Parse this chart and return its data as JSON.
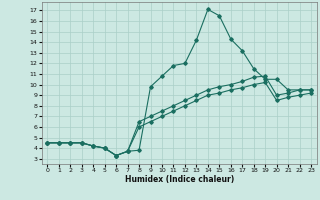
{
  "xlabel": "Humidex (Indice chaleur)",
  "background_color": "#cce8e2",
  "line_color": "#1a6e60",
  "grid_color": "#aacfc8",
  "x_ticks": [
    0,
    1,
    2,
    3,
    4,
    5,
    6,
    7,
    8,
    9,
    10,
    11,
    12,
    13,
    14,
    15,
    16,
    17,
    18,
    19,
    20,
    21,
    22,
    23
  ],
  "y_ticks": [
    3,
    4,
    5,
    6,
    7,
    8,
    9,
    10,
    11,
    12,
    13,
    14,
    15,
    16,
    17
  ],
  "ylim": [
    2.5,
    17.8
  ],
  "xlim": [
    -0.5,
    23.5
  ],
  "line1_x": [
    0,
    1,
    2,
    3,
    4,
    5,
    6,
    7,
    8,
    9,
    10,
    11,
    12,
    13,
    14,
    15,
    16,
    17,
    18,
    19,
    20,
    21,
    22,
    23
  ],
  "line1_y": [
    4.5,
    4.5,
    4.5,
    4.5,
    4.2,
    4.0,
    3.3,
    3.7,
    3.8,
    9.8,
    10.8,
    11.8,
    12.0,
    14.2,
    17.1,
    16.5,
    14.3,
    13.2,
    11.5,
    10.5,
    10.5,
    9.5,
    9.5,
    9.5
  ],
  "line2_x": [
    0,
    1,
    2,
    3,
    4,
    5,
    6,
    7,
    8,
    9,
    10,
    11,
    12,
    13,
    14,
    15,
    16,
    17,
    18,
    19,
    20,
    21,
    22,
    23
  ],
  "line2_y": [
    4.5,
    4.5,
    4.5,
    4.5,
    4.2,
    4.0,
    3.3,
    3.7,
    6.5,
    7.0,
    7.5,
    8.0,
    8.5,
    9.0,
    9.5,
    9.8,
    10.0,
    10.3,
    10.7,
    10.8,
    9.0,
    9.2,
    9.5,
    9.5
  ],
  "line3_x": [
    0,
    1,
    2,
    3,
    4,
    5,
    6,
    7,
    8,
    9,
    10,
    11,
    12,
    13,
    14,
    15,
    16,
    17,
    18,
    19,
    20,
    21,
    22,
    23
  ],
  "line3_y": [
    4.5,
    4.5,
    4.5,
    4.5,
    4.2,
    4.0,
    3.3,
    3.7,
    6.0,
    6.5,
    7.0,
    7.5,
    8.0,
    8.5,
    9.0,
    9.2,
    9.5,
    9.7,
    10.0,
    10.2,
    8.5,
    8.8,
    9.0,
    9.2
  ]
}
